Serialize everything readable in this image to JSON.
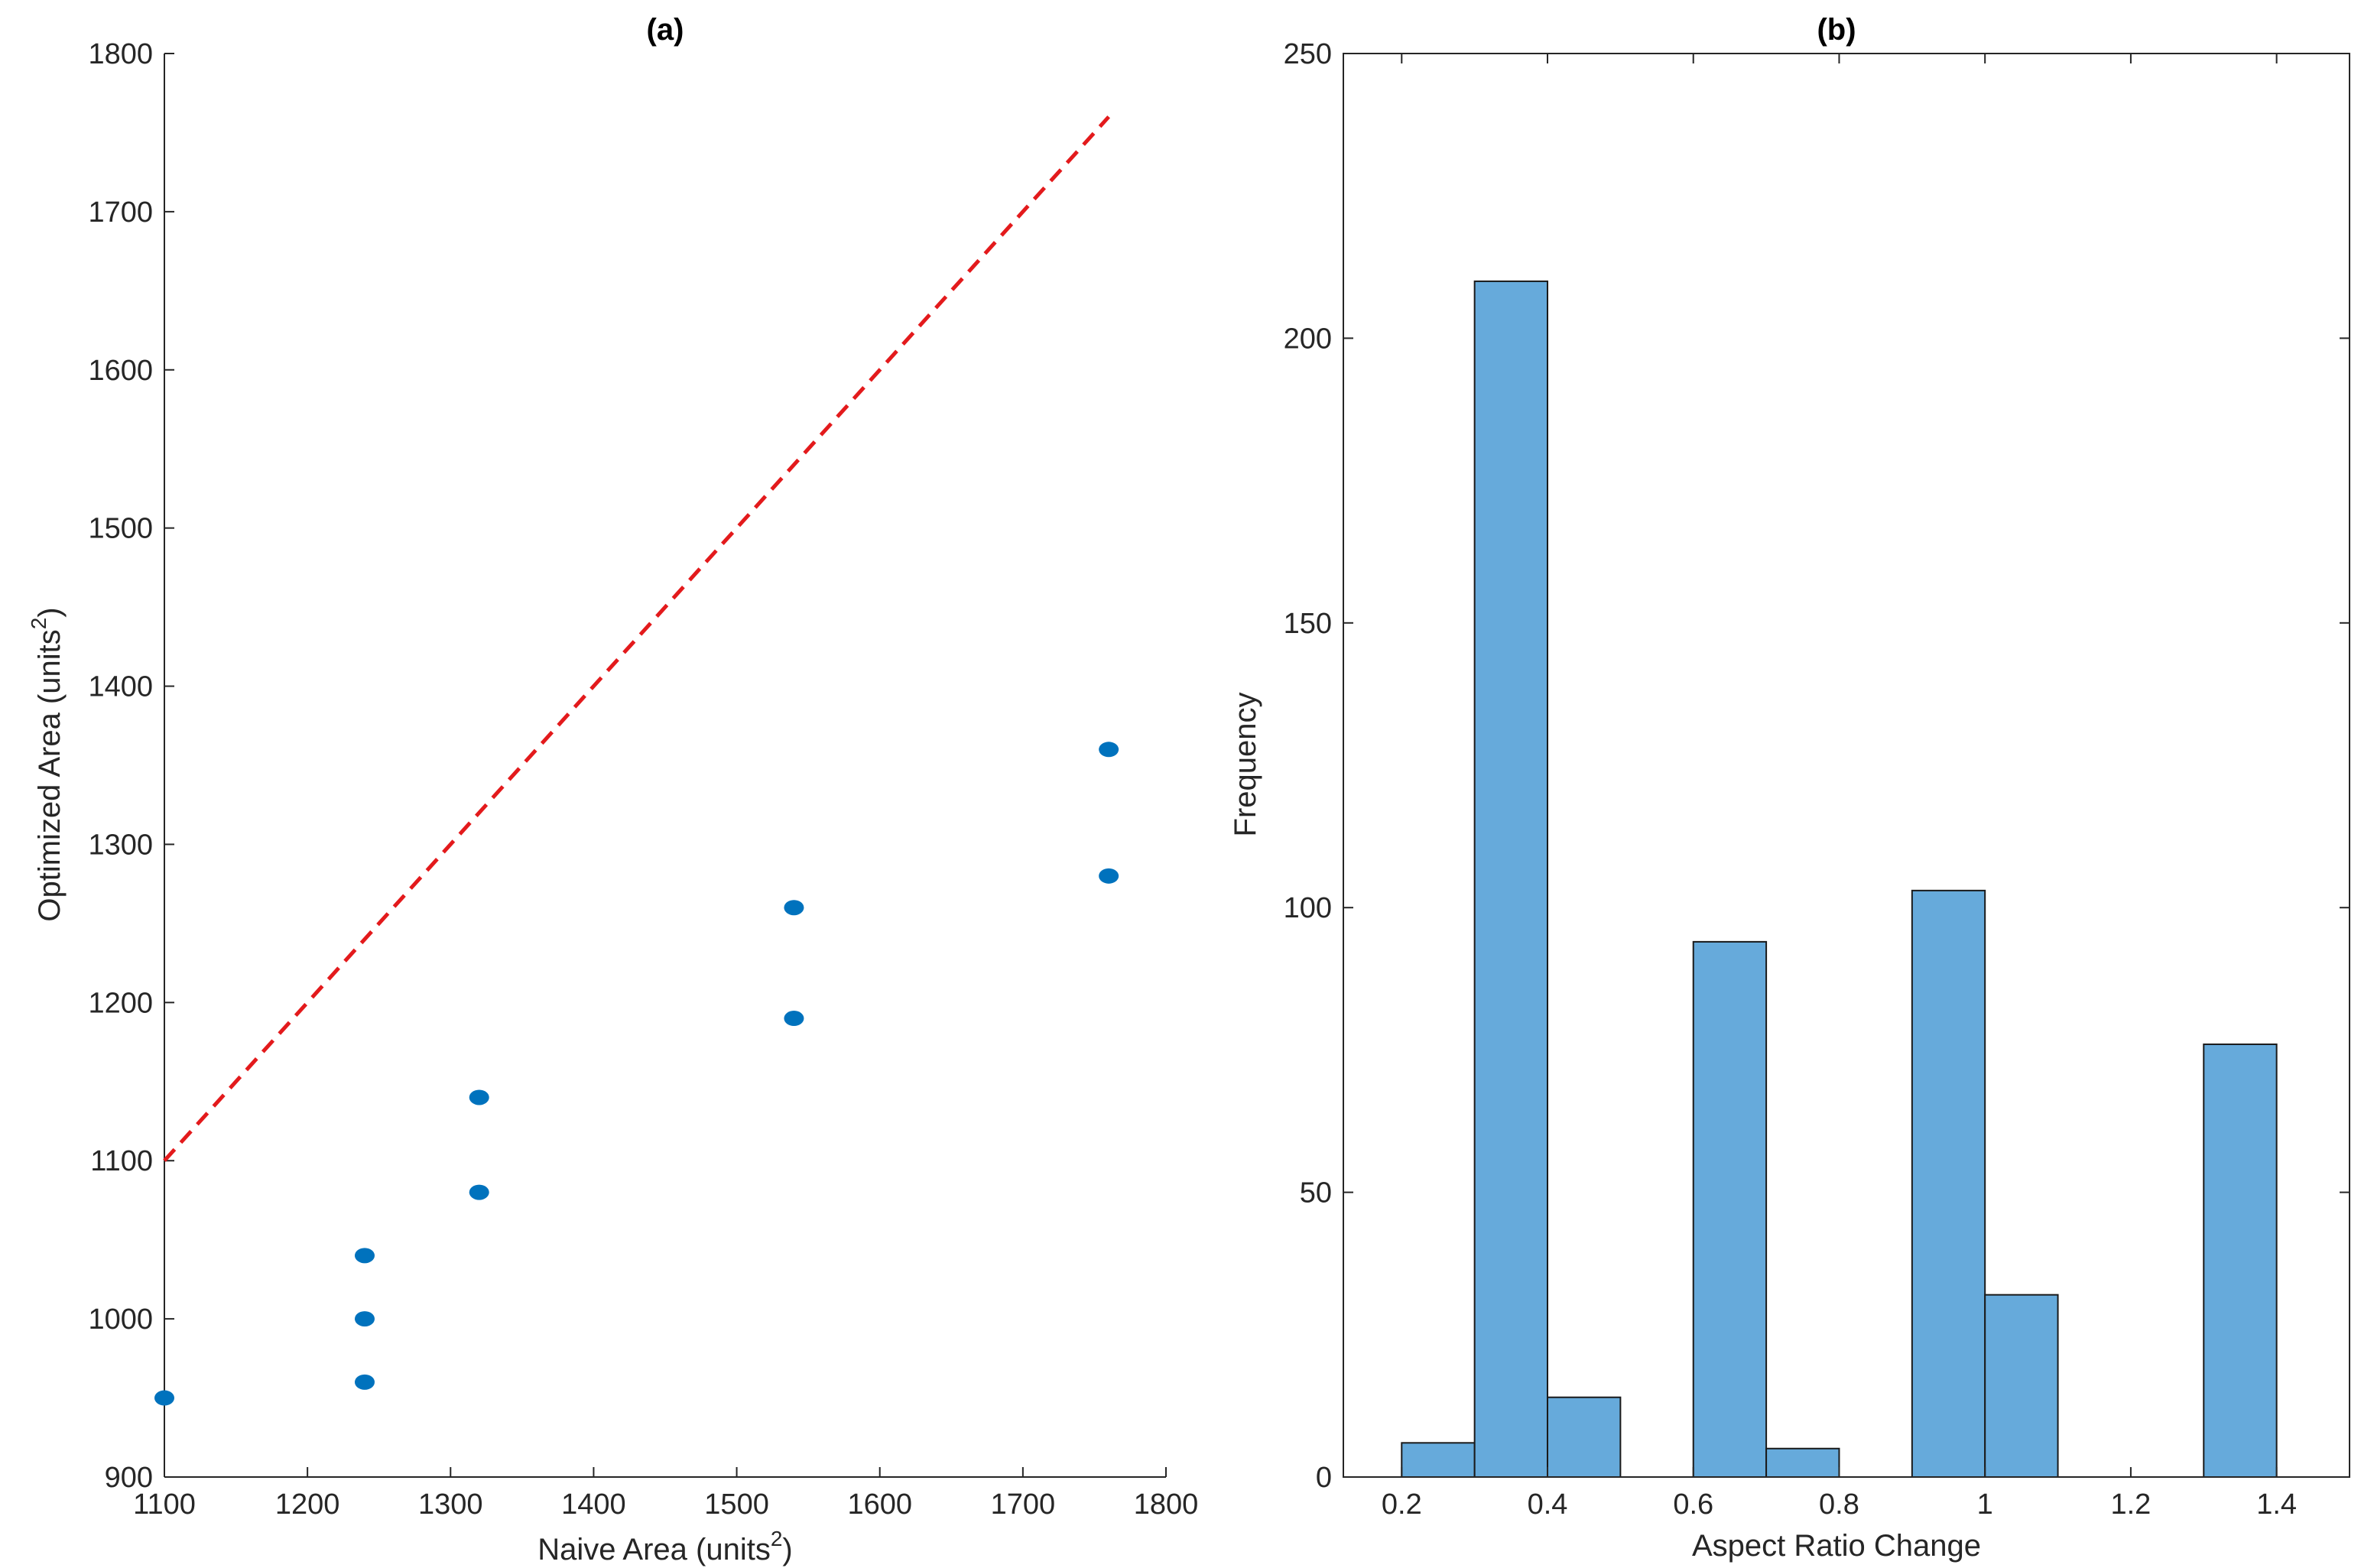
{
  "chart_data": [
    {
      "type": "scatter",
      "title": "(a)",
      "xlabel": "Naive Area (units",
      "xlabel_sup": "2",
      "xlabel_end": ")",
      "ylabel": "Optimized Area (units",
      "ylabel_sup": "2",
      "ylabel_end": ")",
      "xlim": [
        1100,
        1800
      ],
      "ylim": [
        900,
        1800
      ],
      "xticks": [
        1100,
        1200,
        1300,
        1400,
        1500,
        1600,
        1700,
        1800
      ],
      "yticks": [
        900,
        1000,
        1100,
        1200,
        1300,
        1400,
        1500,
        1600,
        1700,
        1800
      ],
      "series": [
        {
          "name": "points",
          "color": "#0072BD",
          "x": [
            1100,
            1240,
            1240,
            1240,
            1320,
            1320,
            1540,
            1540,
            1760,
            1760
          ],
          "y": [
            950,
            960,
            1000,
            1040,
            1080,
            1140,
            1190,
            1260,
            1280,
            1360
          ]
        }
      ],
      "reference_line": {
        "x": [
          1100,
          1760
        ],
        "y": [
          1100,
          1760
        ],
        "color": "#E31A1C",
        "style": "dashed"
      },
      "grid": false
    },
    {
      "type": "bar",
      "title": "(b)",
      "xlabel": "Aspect Ratio Change",
      "ylabel": "Frequency",
      "xlim": [
        0.12,
        1.5
      ],
      "ylim": [
        0,
        250
      ],
      "xticks": [
        0.2,
        0.4,
        0.6,
        0.8,
        1,
        1.2,
        1.4
      ],
      "xtick_labels": [
        "0.2",
        "0.4",
        "0.6",
        "0.8",
        "1",
        "1.2",
        "1.4"
      ],
      "yticks": [
        0,
        50,
        100,
        150,
        200,
        250
      ],
      "bin_edges": [
        0.2,
        0.3,
        0.4,
        0.5,
        0.6,
        0.7,
        0.8,
        0.9,
        1.0,
        1.1,
        1.2,
        1.3,
        1.4
      ],
      "values": [
        6,
        210,
        14,
        0,
        94,
        5,
        0,
        103,
        32,
        0,
        0,
        76
      ],
      "bar_color": "#66AADB",
      "edge_color": "#1a1a1a",
      "grid": false
    }
  ]
}
